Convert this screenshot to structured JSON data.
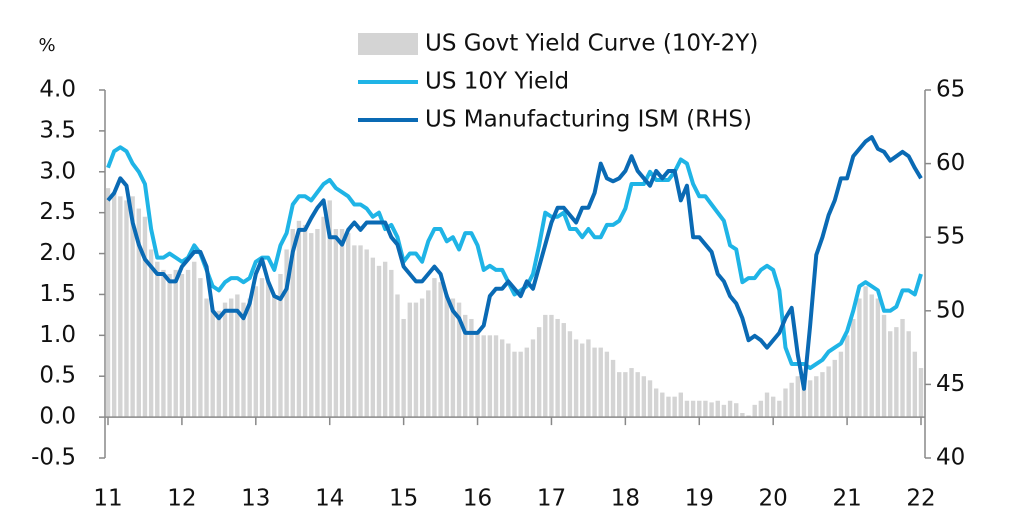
{
  "chart_data": {
    "type": "combo",
    "categories": [
      "11",
      null,
      null,
      null,
      null,
      null,
      null,
      null,
      null,
      null,
      null,
      null,
      "12",
      null,
      null,
      null,
      null,
      null,
      null,
      null,
      null,
      null,
      null,
      null,
      "13",
      null,
      null,
      null,
      null,
      null,
      null,
      null,
      null,
      null,
      null,
      null,
      "14",
      null,
      null,
      null,
      null,
      null,
      null,
      null,
      null,
      null,
      null,
      null,
      "15",
      null,
      null,
      null,
      null,
      null,
      null,
      null,
      null,
      null,
      null,
      null,
      "16",
      null,
      null,
      null,
      null,
      null,
      null,
      null,
      null,
      null,
      null,
      null,
      "17",
      null,
      null,
      null,
      null,
      null,
      null,
      null,
      null,
      null,
      null,
      null,
      "18",
      null,
      null,
      null,
      null,
      null,
      null,
      null,
      null,
      null,
      null,
      null,
      "19",
      null,
      null,
      null,
      null,
      null,
      null,
      null,
      null,
      null,
      null,
      null,
      "20",
      null,
      null,
      null,
      null,
      null,
      null,
      null,
      null,
      null,
      null,
      null,
      "21",
      null,
      null,
      null,
      null,
      null,
      null,
      null,
      null,
      null,
      null,
      null,
      "22"
    ],
    "y_label": "%",
    "ylim": [
      -0.5,
      4.0
    ],
    "yticks": [
      {
        "value": -0.5,
        "label": "-0.5"
      },
      {
        "value": 0,
        "label": "0.0"
      },
      0.5,
      {
        "value": 1,
        "label": "1.0"
      },
      1.5,
      {
        "value": 2,
        "label": "2.0"
      },
      2.5,
      {
        "value": 3,
        "label": "3.0"
      },
      3.5,
      {
        "value": 4,
        "label": "4.0"
      }
    ],
    "y2lim": [
      40,
      65
    ],
    "y2ticks": [
      40,
      45,
      50,
      55,
      60,
      65
    ],
    "series": [
      {
        "name": "US Govt Yield Curve (10Y-2Y)",
        "type": "bar",
        "color": "#d4d4d4",
        "values": [
          2.8,
          2.75,
          2.7,
          2.65,
          2.7,
          2.55,
          2.45,
          2.05,
          1.9,
          1.8,
          1.75,
          1.8,
          1.75,
          1.8,
          1.9,
          1.7,
          1.45,
          1.3,
          1.3,
          1.4,
          1.45,
          1.5,
          1.4,
          1.45,
          1.6,
          1.7,
          1.65,
          1.5,
          1.75,
          2.05,
          2.3,
          2.4,
          2.35,
          2.25,
          2.3,
          2.45,
          2.65,
          2.3,
          2.3,
          2.25,
          2.1,
          2.1,
          2.05,
          1.95,
          1.85,
          1.9,
          1.8,
          1.5,
          1.2,
          1.4,
          1.4,
          1.45,
          1.55,
          1.7,
          1.65,
          1.5,
          1.45,
          1.4,
          1.25,
          1.2,
          1.05,
          1.0,
          1.0,
          1.0,
          0.95,
          0.9,
          0.8,
          0.8,
          0.85,
          0.95,
          1.1,
          1.25,
          1.25,
          1.2,
          1.15,
          1.05,
          0.95,
          0.9,
          0.95,
          0.85,
          0.85,
          0.8,
          0.7,
          0.55,
          0.55,
          0.6,
          0.55,
          0.5,
          0.45,
          0.35,
          0.3,
          0.25,
          0.25,
          0.3,
          0.2,
          0.2,
          0.2,
          0.2,
          0.18,
          0.2,
          0.15,
          0.2,
          0.17,
          0.05,
          0.02,
          0.15,
          0.2,
          0.3,
          0.25,
          0.2,
          0.35,
          0.42,
          0.5,
          0.5,
          0.45,
          0.5,
          0.55,
          0.62,
          0.7,
          0.8,
          1.0,
          1.2,
          1.45,
          1.6,
          1.5,
          1.45,
          1.25,
          1.05,
          1.1,
          1.2,
          1.05,
          0.8,
          0.6
        ]
      },
      {
        "name": "US 10Y Yield",
        "type": "line",
        "color": "#1fb4e6",
        "values": [
          3.05,
          3.25,
          3.3,
          3.25,
          3.1,
          3.0,
          2.85,
          2.3,
          1.95,
          1.95,
          2.0,
          1.95,
          1.9,
          1.95,
          2.1,
          2.0,
          1.8,
          1.6,
          1.55,
          1.65,
          1.7,
          1.7,
          1.65,
          1.7,
          1.9,
          1.95,
          1.95,
          1.8,
          2.1,
          2.25,
          2.6,
          2.7,
          2.7,
          2.65,
          2.75,
          2.85,
          2.9,
          2.8,
          2.75,
          2.7,
          2.6,
          2.6,
          2.55,
          2.45,
          2.5,
          2.3,
          2.35,
          2.2,
          1.9,
          2.0,
          2.0,
          1.9,
          2.15,
          2.3,
          2.3,
          2.15,
          2.2,
          2.05,
          2.25,
          2.25,
          2.1,
          1.8,
          1.85,
          1.8,
          1.8,
          1.65,
          1.5,
          1.55,
          1.6,
          1.75,
          2.1,
          2.5,
          2.45,
          2.45,
          2.5,
          2.3,
          2.3,
          2.2,
          2.3,
          2.2,
          2.2,
          2.35,
          2.35,
          2.4,
          2.55,
          2.85,
          2.85,
          2.85,
          3.0,
          2.9,
          2.9,
          2.9,
          3.0,
          3.15,
          3.1,
          2.85,
          2.7,
          2.7,
          2.6,
          2.5,
          2.4,
          2.1,
          2.05,
          1.65,
          1.7,
          1.7,
          1.8,
          1.85,
          1.8,
          1.55,
          0.85,
          0.65,
          0.65,
          0.65,
          0.6,
          0.65,
          0.7,
          0.8,
          0.85,
          0.9,
          1.05,
          1.3,
          1.6,
          1.65,
          1.6,
          1.55,
          1.3,
          1.3,
          1.35,
          1.55,
          1.55,
          1.5,
          1.75
        ]
      },
      {
        "name": "US Manufacturing ISM (RHS)",
        "type": "line",
        "axis": "y2",
        "color": "#0a6ab4",
        "values": [
          57.5,
          58,
          59,
          58.5,
          56,
          54.5,
          53.5,
          53,
          52.5,
          52.5,
          52,
          52,
          53,
          53.5,
          54,
          54,
          53,
          50,
          49.5,
          50,
          50,
          50,
          49.5,
          50.5,
          52.5,
          53.5,
          52,
          51,
          50.8,
          51.5,
          54,
          55.5,
          55.5,
          56.3,
          57,
          57.5,
          55,
          55,
          54.5,
          55.5,
          56,
          55.5,
          56,
          56,
          56,
          56,
          55,
          54.5,
          53,
          52.5,
          52,
          52,
          52.5,
          53,
          52.5,
          51,
          50,
          49.5,
          48.5,
          48.5,
          48.5,
          49,
          51,
          51.5,
          51.5,
          52,
          51.5,
          51,
          52,
          51.5,
          53,
          54.5,
          56,
          57,
          57,
          56.5,
          56,
          57,
          57,
          58,
          60,
          59,
          58.8,
          59,
          59.5,
          60.5,
          59.5,
          59,
          58.5,
          59.5,
          59,
          59.5,
          59.5,
          57.5,
          58.5,
          55,
          55,
          54.5,
          54,
          52.5,
          52,
          51,
          50.5,
          49.5,
          48,
          48.3,
          48,
          47.5,
          48,
          48.5,
          49.5,
          50.2,
          47,
          44.7,
          49,
          53.8,
          55,
          56.5,
          57.5,
          59,
          59,
          60.5,
          61,
          61.5,
          61.8,
          61,
          60.8,
          60.2,
          60.5,
          60.8,
          60.5,
          59.7,
          59
        ]
      }
    ]
  }
}
